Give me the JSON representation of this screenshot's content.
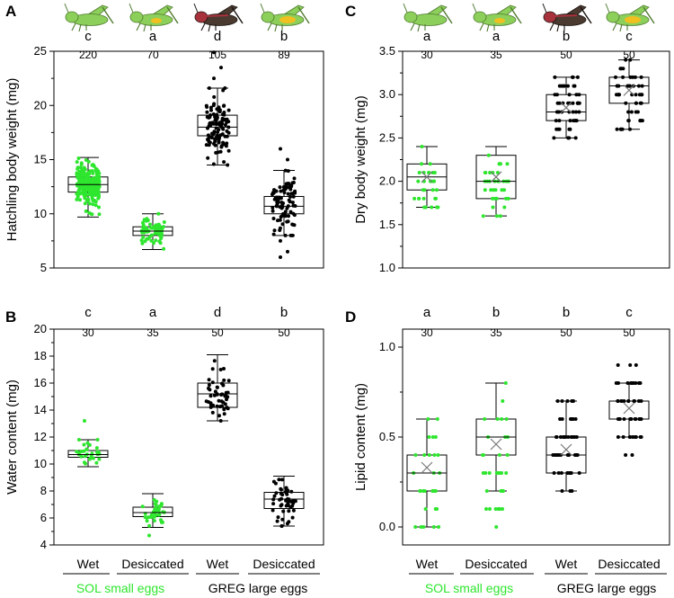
{
  "figure": {
    "colors": {
      "sol": "#2ee62e",
      "greg": "#000000",
      "sol_body": "#8ccf5a",
      "greg_body": "#4a3a30",
      "greg_red": "#a8323c",
      "yolk": "#f0c020"
    },
    "icons": [
      "grasshopper-green-icon",
      "grasshopper-green-egg-icon",
      "grasshopper-dark-icon",
      "grasshopper-green-yolk-icon"
    ],
    "categories_x": [
      "Wet",
      "Desiccated",
      "Wet",
      "Desiccated"
    ],
    "groups": [
      {
        "label": "SOL small eggs",
        "color": "#2ee62e"
      },
      {
        "label": "GREG large eggs",
        "color": "#000000"
      }
    ]
  },
  "chart_data": [
    {
      "id": "A",
      "type": "boxplot",
      "panel_label": "A",
      "ylabel": "Hatchling body weight (mg)",
      "ylim": [
        5,
        25
      ],
      "yticks": [
        "5",
        "10",
        "15",
        "20",
        "25"
      ],
      "letters": [
        "c",
        "a",
        "d",
        "b"
      ],
      "counts": [
        "220",
        "70",
        "105",
        "89"
      ],
      "show_mean": false,
      "boxes": [
        {
          "min": 9.7,
          "q1": 12.0,
          "median": 12.7,
          "q3": 13.4,
          "max": 15.2,
          "mean": 12.7,
          "n": 220,
          "sd": 1.0,
          "group": "sol"
        },
        {
          "min": 6.7,
          "q1": 8.0,
          "median": 8.4,
          "q3": 8.8,
          "max": 10.0,
          "mean": 8.4,
          "n": 70,
          "sd": 0.6,
          "group": "sol"
        },
        {
          "min": 14.5,
          "q1": 17.2,
          "median": 18.0,
          "q3": 19.1,
          "max": 21.6,
          "mean": 18.1,
          "n": 105,
          "sd": 1.4,
          "group": "greg"
        },
        {
          "min": 8.0,
          "q1": 10.0,
          "median": 10.7,
          "q3": 11.6,
          "max": 14.0,
          "mean": 10.8,
          "n": 89,
          "sd": 1.5,
          "group": "greg"
        }
      ],
      "outliers": [
        [],
        [],
        [
          [
            22.5
          ],
          [
            23.5
          ],
          [
            24.9
          ]
        ],
        [
          [
            6.0
          ],
          [
            6.5
          ],
          [
            7.5
          ],
          [
            15.0
          ],
          [
            16.0
          ]
        ]
      ]
    },
    {
      "id": "B",
      "type": "boxplot",
      "panel_label": "B",
      "ylabel": "Water content (mg)",
      "ylim": [
        4,
        20
      ],
      "yticks": [
        "4",
        "6",
        "8",
        "10",
        "12",
        "14",
        "16",
        "18",
        "20"
      ],
      "letters": [
        "c",
        "a",
        "d",
        "b"
      ],
      "counts": [
        "30",
        "35",
        "50",
        "50"
      ],
      "show_mean": false,
      "boxes": [
        {
          "min": 9.8,
          "q1": 10.5,
          "median": 10.7,
          "q3": 11.0,
          "max": 11.8,
          "mean": 10.8,
          "n": 30,
          "sd": 0.45,
          "group": "sol"
        },
        {
          "min": 5.3,
          "q1": 6.1,
          "median": 6.4,
          "q3": 6.8,
          "max": 7.8,
          "mean": 6.4,
          "n": 35,
          "sd": 0.55,
          "group": "sol"
        },
        {
          "min": 13.2,
          "q1": 14.2,
          "median": 15.2,
          "q3": 16.0,
          "max": 18.1,
          "mean": 15.2,
          "n": 50,
          "sd": 1.1,
          "group": "greg"
        },
        {
          "min": 5.4,
          "q1": 6.7,
          "median": 7.4,
          "q3": 7.9,
          "max": 9.1,
          "mean": 7.3,
          "n": 50,
          "sd": 0.9,
          "group": "greg"
        }
      ],
      "outliers": [
        [
          [
            13.2
          ]
        ],
        [
          [
            4.7
          ]
        ],
        [],
        []
      ]
    },
    {
      "id": "C",
      "type": "boxplot",
      "panel_label": "C",
      "ylabel": "Dry body weight (mg)",
      "ylim": [
        1.0,
        3.5
      ],
      "yticks": [
        "1.0",
        "1.5",
        "2.0",
        "2.5",
        "3.0",
        "3.5"
      ],
      "letters": [
        "a",
        "a",
        "b",
        "c"
      ],
      "counts": [
        "30",
        "35",
        "50",
        "50"
      ],
      "show_mean": true,
      "boxes": [
        {
          "min": 1.7,
          "q1": 1.9,
          "median": 2.05,
          "q3": 2.2,
          "max": 2.4,
          "mean": 2.05,
          "n": 30,
          "sd": 0.18,
          "group": "sol",
          "levels": [
            1.7,
            1.8,
            1.9,
            2.0,
            2.1,
            2.2,
            2.3,
            2.4
          ]
        },
        {
          "min": 1.6,
          "q1": 1.8,
          "median": 2.0,
          "q3": 2.3,
          "max": 2.4,
          "mean": 2.05,
          "n": 35,
          "sd": 0.25,
          "group": "sol",
          "levels": [
            1.6,
            1.7,
            1.8,
            1.9,
            2.0,
            2.1,
            2.2,
            2.3,
            2.4
          ]
        },
        {
          "min": 2.5,
          "q1": 2.7,
          "median": 2.8,
          "q3": 3.0,
          "max": 3.2,
          "mean": 2.85,
          "n": 50,
          "sd": 0.2,
          "group": "greg",
          "levels": [
            2.5,
            2.6,
            2.7,
            2.8,
            2.9,
            3.0,
            3.1,
            3.2
          ]
        },
        {
          "min": 2.6,
          "q1": 2.9,
          "median": 3.1,
          "q3": 3.2,
          "max": 3.4,
          "mean": 3.05,
          "n": 50,
          "sd": 0.22,
          "group": "greg",
          "levels": [
            2.6,
            2.7,
            2.8,
            2.9,
            3.0,
            3.1,
            3.2,
            3.3,
            3.4
          ]
        }
      ],
      "outliers": [
        [],
        [],
        [],
        []
      ]
    },
    {
      "id": "D",
      "type": "boxplot",
      "panel_label": "D",
      "ylabel": "Lipid content (mg)",
      "ylim": [
        -0.1,
        1.1
      ],
      "yticks": [
        "0.0",
        "0.5",
        "1.0"
      ],
      "ytick_values": [
        0.0,
        0.5,
        1.0
      ],
      "letters": [
        "a",
        "b",
        "b",
        "c"
      ],
      "counts": [
        "30",
        "35",
        "50",
        "50"
      ],
      "show_mean": true,
      "boxes": [
        {
          "min": 0.0,
          "q1": 0.2,
          "median": 0.3,
          "q3": 0.4,
          "max": 0.6,
          "mean": 0.33,
          "n": 30,
          "sd": 0.15,
          "group": "sol",
          "levels": [
            0.0,
            0.1,
            0.2,
            0.3,
            0.4,
            0.5,
            0.6
          ]
        },
        {
          "min": 0.2,
          "q1": 0.4,
          "median": 0.5,
          "q3": 0.6,
          "max": 0.8,
          "mean": 0.46,
          "n": 35,
          "sd": 0.17,
          "group": "sol",
          "levels": [
            0.0,
            0.1,
            0.2,
            0.3,
            0.4,
            0.5,
            0.6,
            0.7,
            0.8
          ]
        },
        {
          "min": 0.2,
          "q1": 0.3,
          "median": 0.4,
          "q3": 0.5,
          "max": 0.7,
          "mean": 0.43,
          "n": 50,
          "sd": 0.13,
          "group": "greg",
          "levels": [
            0.2,
            0.3,
            0.4,
            0.5,
            0.6,
            0.7
          ]
        },
        {
          "min": 0.5,
          "q1": 0.6,
          "median": 0.7,
          "q3": 0.7,
          "max": 0.8,
          "mean": 0.66,
          "n": 50,
          "sd": 0.12,
          "group": "greg",
          "levels": [
            0.4,
            0.5,
            0.6,
            0.7,
            0.8,
            0.9
          ]
        }
      ],
      "outliers": [
        [],
        [],
        [],
        []
      ]
    }
  ]
}
